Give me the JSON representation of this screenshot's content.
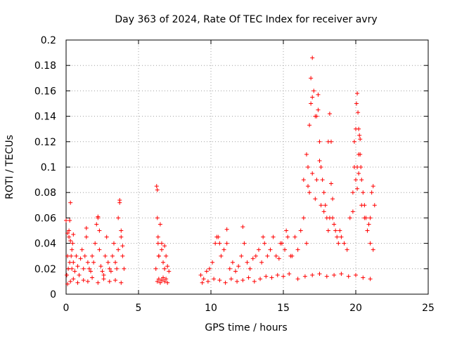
{
  "chart_data": {
    "type": "scatter",
    "title": "Day 363 of 2024, Rate Of TEC Index for receiver avry",
    "xlabel": "GPS time / hours",
    "ylabel": "ROTI / TECUs",
    "xlim": [
      0,
      25
    ],
    "ylim": [
      0,
      0.2
    ],
    "xticks": [
      "0",
      "5",
      "10",
      "15",
      "20",
      "25"
    ],
    "yticks": [
      "0",
      "0.02",
      "0.04",
      "0.06",
      "0.08",
      "0.1",
      "0.12",
      "0.14",
      "0.16",
      "0.18",
      "0.2"
    ],
    "grid": true,
    "marker": "+",
    "color": "#ff0000",
    "series": [
      {
        "x": [
          0.05,
          0.1,
          0.15,
          0.2,
          0.25,
          0.3,
          0.35,
          0.4,
          0.45,
          0.5,
          0.6,
          0.7,
          0.8,
          0.9,
          1.0,
          1.1,
          1.2,
          1.3,
          1.4,
          1.5,
          1.6,
          1.7,
          1.8,
          1.9,
          2.0,
          2.1,
          2.2,
          2.3,
          2.4,
          2.5,
          2.6,
          2.7,
          2.8,
          2.9,
          3.0,
          3.1,
          3.2,
          3.3,
          3.4,
          3.5,
          3.6,
          3.7,
          3.8,
          3.9,
          4.0,
          0.1,
          0.3,
          0.5,
          0.8,
          1.2,
          1.5,
          1.8,
          2.2,
          2.6,
          3.0,
          3.4,
          3.8,
          0.2,
          0.25,
          0.3,
          0.4,
          0.5,
          1.4,
          2.2,
          2.3,
          3.6,
          3.7,
          3.8,
          3.9,
          0.0,
          0.1
        ],
        "y": [
          0.015,
          0.03,
          0.02,
          0.045,
          0.025,
          0.072,
          0.03,
          0.02,
          0.04,
          0.025,
          0.018,
          0.03,
          0.022,
          0.015,
          0.028,
          0.035,
          0.02,
          0.03,
          0.052,
          0.025,
          0.02,
          0.018,
          0.03,
          0.025,
          0.04,
          0.055,
          0.06,
          0.035,
          0.022,
          0.018,
          0.015,
          0.03,
          0.045,
          0.025,
          0.02,
          0.018,
          0.03,
          0.04,
          0.025,
          0.02,
          0.035,
          0.072,
          0.045,
          0.03,
          0.02,
          0.008,
          0.01,
          0.012,
          0.009,
          0.011,
          0.01,
          0.013,
          0.009,
          0.012,
          0.01,
          0.011,
          0.009,
          0.05,
          0.058,
          0.042,
          0.035,
          0.047,
          0.045,
          0.061,
          0.05,
          0.06,
          0.074,
          0.05,
          0.038,
          0.058,
          0.048
        ]
      },
      {
        "x": [
          6.2,
          6.25,
          6.3,
          6.35,
          6.4,
          6.5,
          6.6,
          6.7,
          6.8,
          6.9,
          7.0,
          7.1,
          6.3,
          6.4,
          6.5,
          6.6,
          6.7,
          6.8,
          6.9,
          7.0,
          6.3,
          6.35,
          6.4,
          6.6,
          6.8
        ],
        "y": [
          0.02,
          0.085,
          0.06,
          0.045,
          0.03,
          0.055,
          0.035,
          0.025,
          0.02,
          0.03,
          0.022,
          0.018,
          0.01,
          0.012,
          0.009,
          0.011,
          0.013,
          0.01,
          0.012,
          0.009,
          0.082,
          0.04,
          0.03,
          0.04,
          0.038
        ]
      },
      {
        "x": [
          9.3,
          9.5,
          9.7,
          9.9,
          10.1,
          10.3,
          10.5,
          10.7,
          10.9,
          11.1,
          11.3,
          11.5,
          11.7,
          11.9,
          12.1,
          12.3,
          12.5,
          12.7,
          12.9,
          13.1,
          13.3,
          13.5,
          13.7,
          13.9,
          14.1,
          14.3,
          14.5,
          14.7,
          14.9,
          15.1,
          15.3,
          15.5,
          9.4,
          9.8,
          10.2,
          10.6,
          11.0,
          11.4,
          11.8,
          12.2,
          12.6,
          13.0,
          13.4,
          13.8,
          14.2,
          14.6,
          15.0,
          15.4,
          10.4,
          10.6,
          11.1,
          12.2,
          13.6,
          14.8,
          15.2
        ],
        "y": [
          0.015,
          0.012,
          0.018,
          0.02,
          0.025,
          0.04,
          0.045,
          0.03,
          0.035,
          0.04,
          0.02,
          0.025,
          0.018,
          0.022,
          0.03,
          0.04,
          0.025,
          0.02,
          0.028,
          0.03,
          0.035,
          0.025,
          0.04,
          0.03,
          0.035,
          0.045,
          0.03,
          0.028,
          0.04,
          0.035,
          0.045,
          0.03,
          0.009,
          0.01,
          0.012,
          0.011,
          0.009,
          0.012,
          0.01,
          0.011,
          0.013,
          0.01,
          0.012,
          0.014,
          0.013,
          0.015,
          0.014,
          0.016,
          0.045,
          0.04,
          0.051,
          0.053,
          0.045,
          0.04,
          0.05
        ]
      },
      {
        "x": [
          15.6,
          15.8,
          16.0,
          16.2,
          16.4,
          16.6,
          16.7,
          16.8,
          16.9,
          17.0,
          17.1,
          17.2,
          17.3,
          17.4,
          17.5,
          17.6,
          17.7,
          17.8,
          17.9,
          18.0,
          18.1,
          18.2,
          18.3,
          18.4,
          18.5,
          18.6,
          18.7,
          18.8,
          18.9,
          19.0,
          19.2,
          19.4,
          19.6,
          19.8,
          19.9,
          20.0,
          20.05,
          20.1,
          20.15,
          20.2,
          20.25,
          20.3,
          20.35,
          20.4,
          20.5,
          20.6,
          20.7,
          20.8,
          20.9,
          21.0,
          21.1,
          21.2,
          21.3,
          16.8,
          16.9,
          17.0,
          17.3,
          17.4,
          17.5,
          18.1,
          18.3,
          20.0,
          20.1,
          20.2,
          20.3,
          16.0,
          16.5,
          17.0,
          17.5,
          18.0,
          18.5,
          19.0,
          19.5,
          20.0,
          20.5,
          21.0,
          16.4,
          16.6,
          16.7,
          17.0,
          17.2,
          17.6,
          17.8,
          18.2,
          18.4,
          19.8,
          19.9,
          20.1,
          20.2,
          20.4,
          20.6,
          20.8,
          21.0,
          21.2
        ],
        "y": [
          0.03,
          0.045,
          0.035,
          0.05,
          0.06,
          0.04,
          0.1,
          0.08,
          0.17,
          0.186,
          0.16,
          0.14,
          0.09,
          0.157,
          0.12,
          0.1,
          0.09,
          0.08,
          0.07,
          0.06,
          0.05,
          0.142,
          0.12,
          0.06,
          0.055,
          0.05,
          0.045,
          0.04,
          0.05,
          0.045,
          0.04,
          0.035,
          0.06,
          0.08,
          0.12,
          0.13,
          0.15,
          0.158,
          0.143,
          0.13,
          0.125,
          0.11,
          0.1,
          0.09,
          0.08,
          0.07,
          0.06,
          0.05,
          0.055,
          0.06,
          0.08,
          0.085,
          0.07,
          0.133,
          0.15,
          0.155,
          0.14,
          0.145,
          0.105,
          0.12,
          0.087,
          0.09,
          0.1,
          0.11,
          0.122,
          0.012,
          0.014,
          0.015,
          0.016,
          0.014,
          0.015,
          0.016,
          0.014,
          0.015,
          0.013,
          0.012,
          0.09,
          0.11,
          0.085,
          0.095,
          0.075,
          0.07,
          0.065,
          0.06,
          0.075,
          0.065,
          0.1,
          0.083,
          0.095,
          0.07,
          0.06,
          0.05,
          0.04,
          0.035
        ]
      }
    ]
  }
}
